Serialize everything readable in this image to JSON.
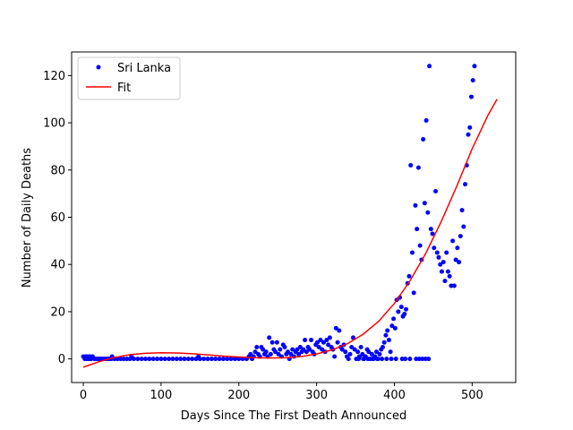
{
  "chart_data": {
    "type": "scatter",
    "title": "",
    "xlabel": "Days Since The First Death Announced",
    "ylabel": "Number of Daily Deaths",
    "xlim": [
      -15,
      556
    ],
    "ylim": [
      -10,
      130
    ],
    "xticks": [
      0,
      100,
      200,
      300,
      400,
      500
    ],
    "yticks": [
      0,
      20,
      40,
      60,
      80,
      100,
      120
    ],
    "grid": false,
    "legend_position": "upper-left",
    "colors": {
      "scatter": "#0000ff",
      "fit": "#ff0000"
    },
    "series": [
      {
        "name": "Sri Lanka",
        "type": "scatter",
        "points": [
          [
            0,
            1
          ],
          [
            2,
            0
          ],
          [
            3,
            1
          ],
          [
            4,
            0
          ],
          [
            5,
            1
          ],
          [
            6,
            0
          ],
          [
            7,
            1
          ],
          [
            8,
            0
          ],
          [
            9,
            1
          ],
          [
            10,
            0
          ],
          [
            12,
            1
          ],
          [
            14,
            0
          ],
          [
            16,
            0
          ],
          [
            18,
            0
          ],
          [
            20,
            0
          ],
          [
            22,
            0
          ],
          [
            24,
            0
          ],
          [
            26,
            0
          ],
          [
            28,
            0
          ],
          [
            30,
            0
          ],
          [
            32,
            0
          ],
          [
            34,
            0
          ],
          [
            36,
            0
          ],
          [
            37,
            1
          ],
          [
            40,
            0
          ],
          [
            44,
            0
          ],
          [
            48,
            0
          ],
          [
            52,
            0
          ],
          [
            56,
            0
          ],
          [
            60,
            0
          ],
          [
            62,
            1
          ],
          [
            65,
            0
          ],
          [
            70,
            0
          ],
          [
            75,
            0
          ],
          [
            80,
            0
          ],
          [
            85,
            0
          ],
          [
            90,
            0
          ],
          [
            95,
            0
          ],
          [
            100,
            0
          ],
          [
            105,
            0
          ],
          [
            110,
            0
          ],
          [
            115,
            0
          ],
          [
            120,
            0
          ],
          [
            125,
            0
          ],
          [
            130,
            0
          ],
          [
            135,
            0
          ],
          [
            140,
            0
          ],
          [
            145,
            0
          ],
          [
            148,
            1
          ],
          [
            150,
            0
          ],
          [
            155,
            0
          ],
          [
            160,
            0
          ],
          [
            165,
            0
          ],
          [
            170,
            0
          ],
          [
            175,
            0
          ],
          [
            180,
            0
          ],
          [
            185,
            0
          ],
          [
            190,
            0
          ],
          [
            195,
            0
          ],
          [
            200,
            0
          ],
          [
            205,
            0
          ],
          [
            210,
            0
          ],
          [
            213,
            1
          ],
          [
            215,
            2
          ],
          [
            217,
            0
          ],
          [
            219,
            1
          ],
          [
            221,
            3
          ],
          [
            223,
            5
          ],
          [
            225,
            2
          ],
          [
            227,
            1
          ],
          [
            229,
            5
          ],
          [
            231,
            4
          ],
          [
            233,
            2
          ],
          [
            235,
            3
          ],
          [
            237,
            1
          ],
          [
            239,
            9
          ],
          [
            241,
            2
          ],
          [
            243,
            7
          ],
          [
            245,
            4
          ],
          [
            247,
            3
          ],
          [
            249,
            7
          ],
          [
            251,
            2
          ],
          [
            253,
            4
          ],
          [
            255,
            1
          ],
          [
            257,
            6
          ],
          [
            259,
            5
          ],
          [
            261,
            2
          ],
          [
            263,
            3
          ],
          [
            265,
            0
          ],
          [
            267,
            2
          ],
          [
            269,
            4
          ],
          [
            271,
            1
          ],
          [
            273,
            3
          ],
          [
            275,
            4
          ],
          [
            277,
            2
          ],
          [
            279,
            5
          ],
          [
            281,
            3
          ],
          [
            283,
            4
          ],
          [
            285,
            8
          ],
          [
            287,
            3
          ],
          [
            289,
            5
          ],
          [
            291,
            4
          ],
          [
            293,
            8
          ],
          [
            295,
            3
          ],
          [
            297,
            2
          ],
          [
            299,
            6
          ],
          [
            301,
            7
          ],
          [
            303,
            5
          ],
          [
            305,
            8
          ],
          [
            307,
            4
          ],
          [
            309,
            7
          ],
          [
            311,
            3
          ],
          [
            313,
            8
          ],
          [
            315,
            6
          ],
          [
            317,
            9
          ],
          [
            319,
            5
          ],
          [
            321,
            4
          ],
          [
            323,
            1
          ],
          [
            325,
            13
          ],
          [
            327,
            7
          ],
          [
            329,
            12
          ],
          [
            331,
            5
          ],
          [
            333,
            4
          ],
          [
            335,
            6
          ],
          [
            337,
            3
          ],
          [
            339,
            1
          ],
          [
            341,
            0
          ],
          [
            343,
            2
          ],
          [
            345,
            5
          ],
          [
            347,
            9
          ],
          [
            349,
            4
          ],
          [
            351,
            0
          ],
          [
            353,
            3
          ],
          [
            355,
            1
          ],
          [
            357,
            5
          ],
          [
            359,
            2
          ],
          [
            361,
            0
          ],
          [
            363,
            1
          ],
          [
            365,
            4
          ],
          [
            367,
            3
          ],
          [
            369,
            0
          ],
          [
            371,
            2
          ],
          [
            373,
            0
          ],
          [
            375,
            1
          ],
          [
            377,
            3
          ],
          [
            379,
            0
          ],
          [
            381,
            2
          ],
          [
            383,
            4
          ],
          [
            385,
            5
          ],
          [
            387,
            7
          ],
          [
            389,
            10
          ],
          [
            391,
            12
          ],
          [
            393,
            8
          ],
          [
            395,
            3
          ],
          [
            397,
            14
          ],
          [
            399,
            17
          ],
          [
            401,
            13
          ],
          [
            403,
            25
          ],
          [
            405,
            20
          ],
          [
            407,
            26
          ],
          [
            409,
            22
          ],
          [
            411,
            18
          ],
          [
            413,
            19
          ],
          [
            415,
            21
          ],
          [
            417,
            32
          ],
          [
            419,
            35
          ],
          [
            421,
            82
          ],
          [
            423,
            45
          ],
          [
            425,
            28
          ],
          [
            427,
            65
          ],
          [
            429,
            55
          ],
          [
            431,
            81
          ],
          [
            433,
            48
          ],
          [
            435,
            42
          ],
          [
            437,
            93
          ],
          [
            439,
            66
          ],
          [
            441,
            101
          ],
          [
            443,
            62
          ],
          [
            445,
            124
          ],
          [
            447,
            55
          ],
          [
            449,
            53
          ],
          [
            451,
            47
          ],
          [
            453,
            71
          ],
          [
            455,
            45
          ],
          [
            457,
            43
          ],
          [
            459,
            40
          ],
          [
            461,
            37
          ],
          [
            463,
            41
          ],
          [
            465,
            33
          ],
          [
            467,
            45
          ],
          [
            469,
            37
          ],
          [
            471,
            35
          ],
          [
            473,
            31
          ],
          [
            475,
            50
          ],
          [
            477,
            31
          ],
          [
            479,
            42
          ],
          [
            481,
            47
          ],
          [
            483,
            41
          ],
          [
            485,
            52
          ],
          [
            487,
            63
          ],
          [
            489,
            56
          ],
          [
            491,
            74
          ],
          [
            493,
            82
          ],
          [
            495,
            95
          ],
          [
            497,
            98
          ],
          [
            499,
            111
          ],
          [
            501,
            118
          ],
          [
            503,
            124
          ],
          [
            354,
            0
          ],
          [
            360,
            0
          ],
          [
            366,
            0
          ],
          [
            372,
            0
          ],
          [
            378,
            0
          ],
          [
            384,
            0
          ],
          [
            390,
            0
          ],
          [
            396,
            0
          ],
          [
            402,
            0
          ],
          [
            410,
            0
          ],
          [
            414,
            0
          ],
          [
            420,
            0
          ],
          [
            428,
            0
          ],
          [
            432,
            0
          ],
          [
            436,
            0
          ],
          [
            440,
            0
          ],
          [
            444,
            0
          ]
        ]
      },
      {
        "name": "Fit",
        "type": "line",
        "points": [
          [
            0,
            -3.5
          ],
          [
            20,
            -1.2
          ],
          [
            40,
            0.6
          ],
          [
            60,
            1.8
          ],
          [
            80,
            2.4
          ],
          [
            100,
            2.6
          ],
          [
            120,
            2.5
          ],
          [
            140,
            2.2
          ],
          [
            160,
            1.7
          ],
          [
            180,
            1.2
          ],
          [
            200,
            0.8
          ],
          [
            220,
            0.5
          ],
          [
            240,
            0.4
          ],
          [
            260,
            0.5
          ],
          [
            280,
            1.0
          ],
          [
            300,
            2.1
          ],
          [
            320,
            3.8
          ],
          [
            340,
            6.5
          ],
          [
            360,
            10.5
          ],
          [
            380,
            16.0
          ],
          [
            400,
            23.5
          ],
          [
            420,
            33.0
          ],
          [
            440,
            44.5
          ],
          [
            460,
            58.0
          ],
          [
            480,
            73.0
          ],
          [
            500,
            89.0
          ],
          [
            520,
            103.0
          ],
          [
            532,
            110.0
          ]
        ]
      }
    ]
  }
}
